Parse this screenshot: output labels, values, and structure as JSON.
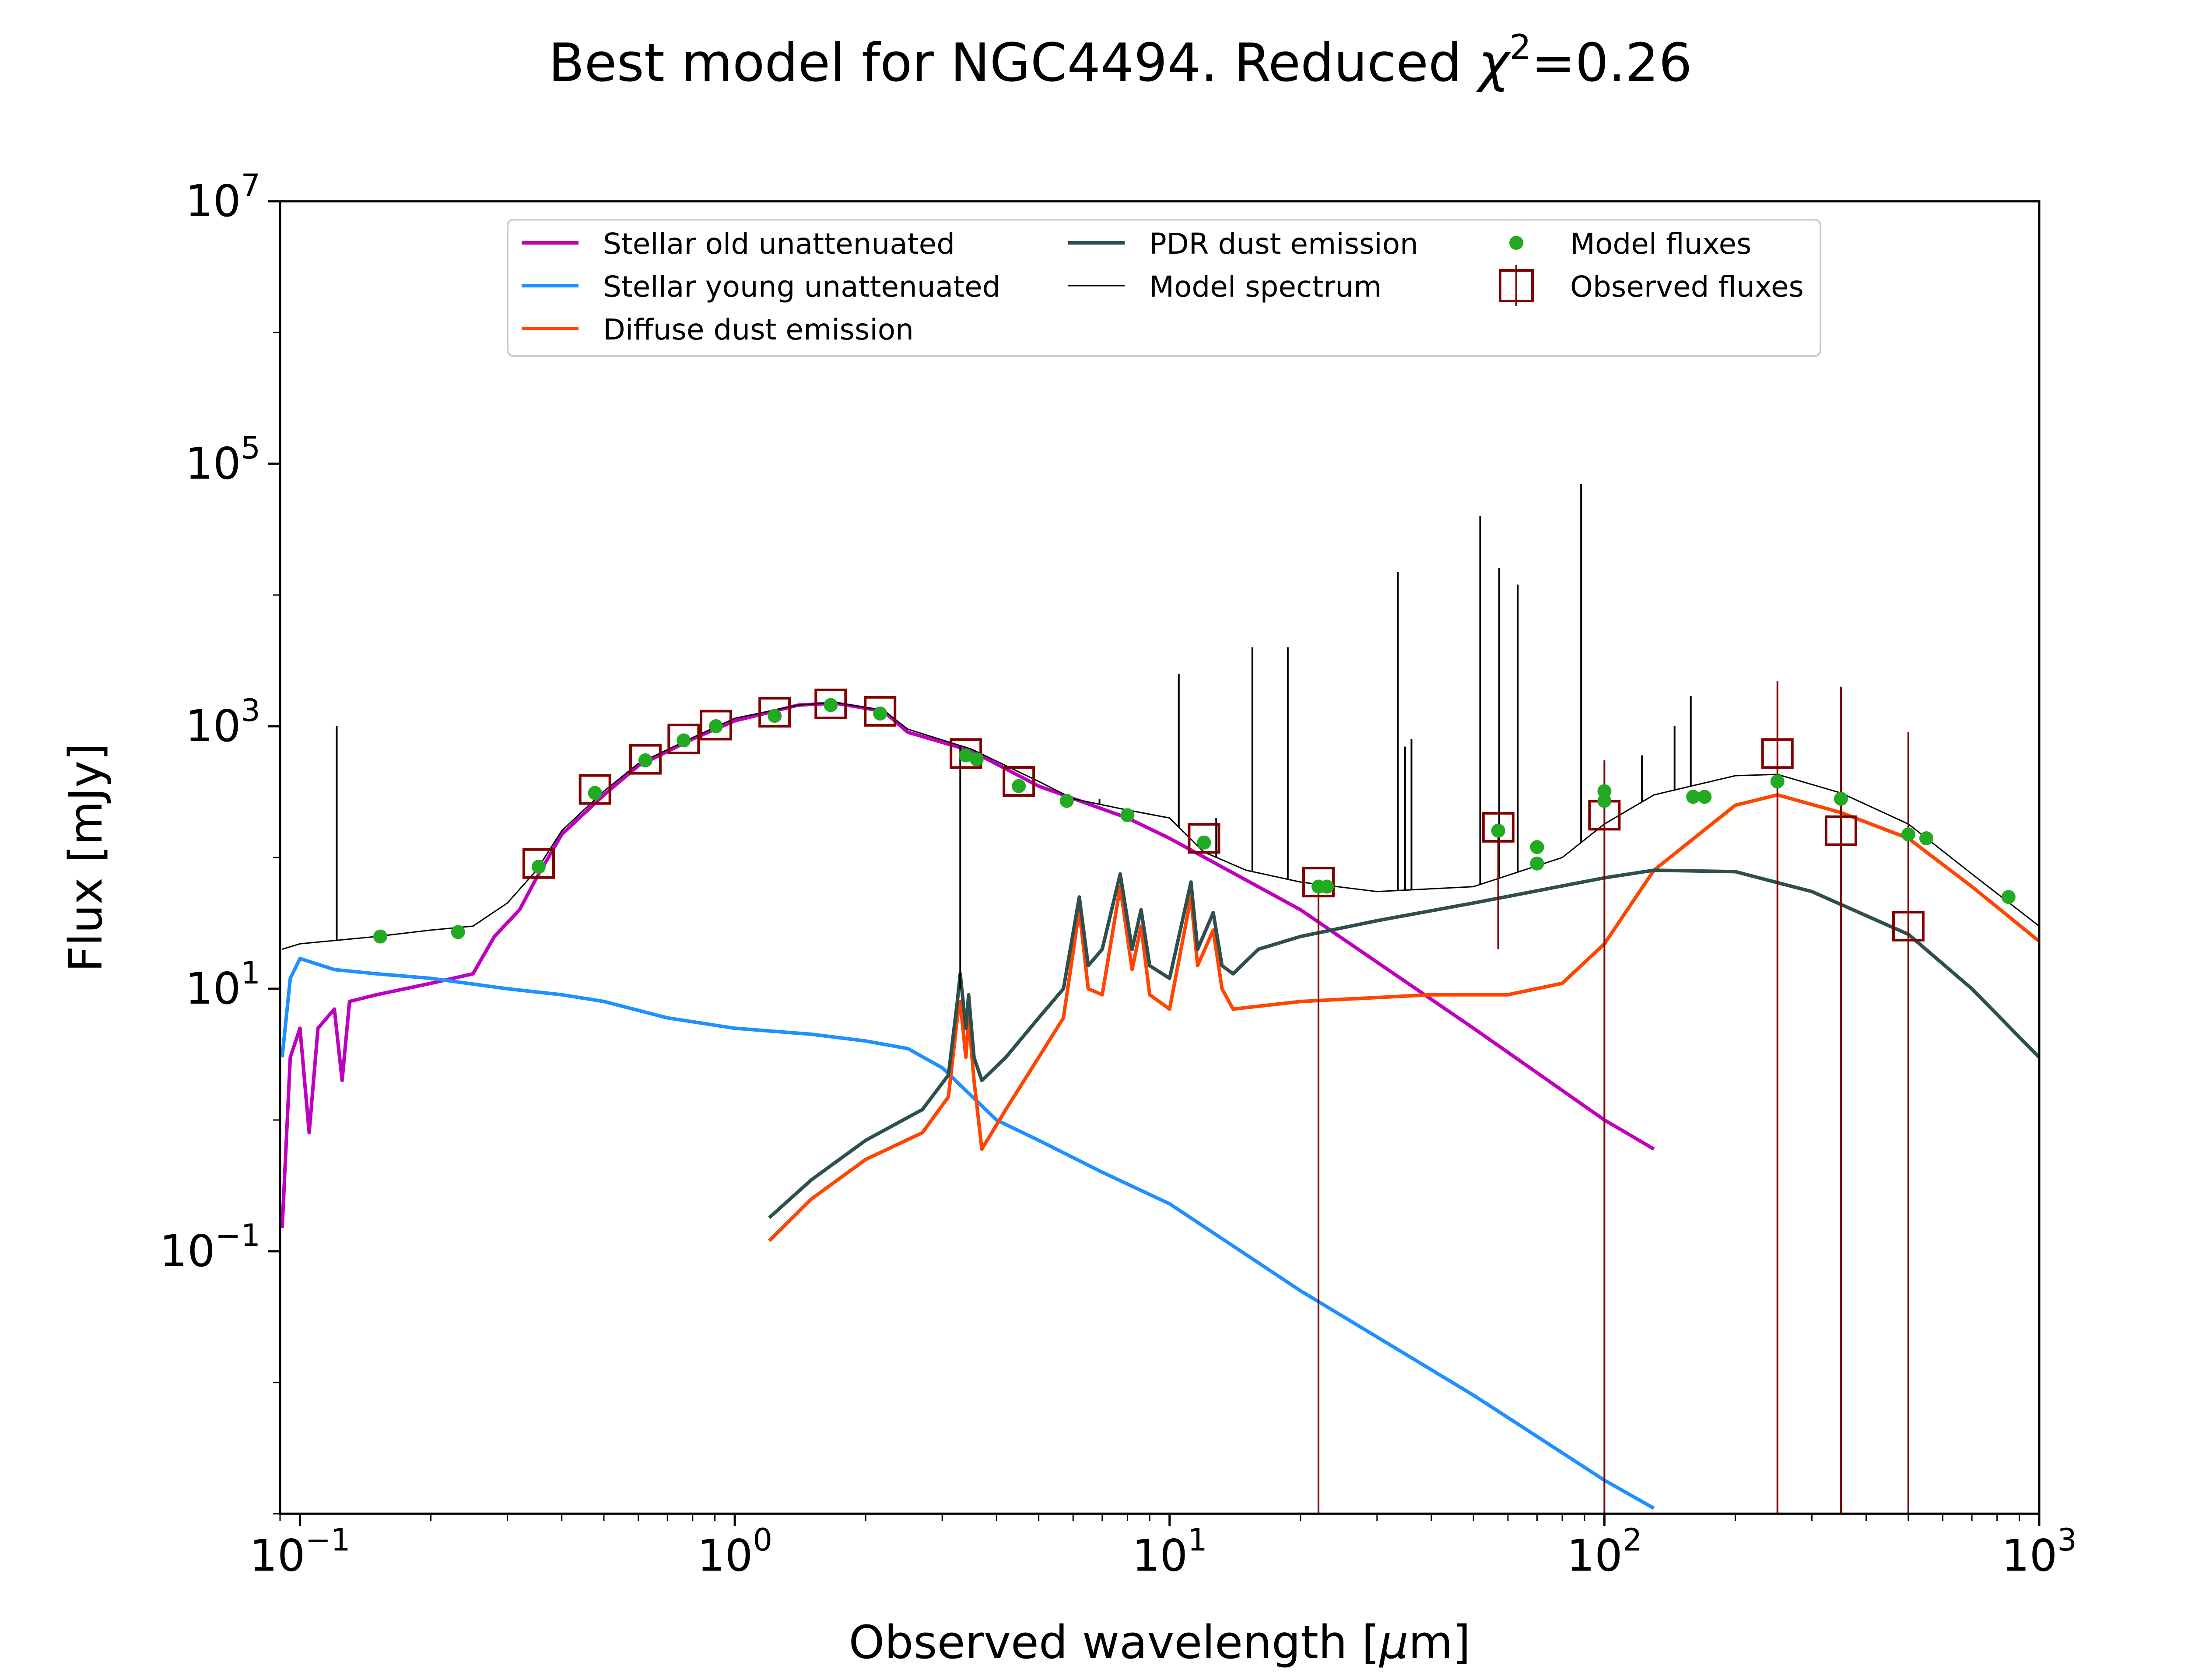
{
  "chart_data": {
    "type": "line",
    "title_prefix": "Best model for NGC4494. Reduced ",
    "title_chi": "χ",
    "title_sup": "2",
    "title_suffix": "=0.26",
    "xlabel_prefix": "Observed wavelength [",
    "xlabel_mu": "μ",
    "xlabel_suffix": "m]",
    "ylabel": "Flux [mJy]",
    "xscale": "log",
    "yscale": "log",
    "xlim": [
      0.09,
      1000
    ],
    "ylim": [
      0.001,
      10000000
    ],
    "xticks": [
      {
        "base": "10",
        "exp": "−1",
        "value": 0.1
      },
      {
        "base": "10",
        "exp": "0",
        "value": 1
      },
      {
        "base": "10",
        "exp": "1",
        "value": 10
      },
      {
        "base": "10",
        "exp": "2",
        "value": 100
      },
      {
        "base": "10",
        "exp": "3",
        "value": 1000
      }
    ],
    "yticks": [
      {
        "base": "10",
        "exp": "−1",
        "value": 0.1
      },
      {
        "base": "10",
        "exp": "1",
        "value": 10
      },
      {
        "base": "10",
        "exp": "3",
        "value": 1000
      },
      {
        "base": "10",
        "exp": "5",
        "value": 100000
      },
      {
        "base": "10",
        "exp": "7",
        "value": 10000000
      }
    ],
    "grid": false,
    "legend_position": "top-center",
    "legend": [
      {
        "label": "Stellar old unattenuated",
        "kind": "line",
        "color": "#bf00bf",
        "width": 8
      },
      {
        "label": "Stellar young unattenuated",
        "kind": "line",
        "color": "#1e90ff",
        "width": 8
      },
      {
        "label": "Diffuse dust emission",
        "kind": "line",
        "color": "#ff4500",
        "width": 8
      },
      {
        "label": "PDR dust emission",
        "kind": "line",
        "color": "#2f4f4f",
        "width": 8
      },
      {
        "label": "Model spectrum",
        "kind": "line",
        "color": "#000000",
        "width": 3
      },
      {
        "label": "Model fluxes",
        "kind": "point",
        "color": "#22aa22"
      },
      {
        "label": "Observed fluxes",
        "kind": "square",
        "color": "#800000"
      }
    ],
    "series": [
      {
        "name": "Stellar old unattenuated",
        "color": "#bf00bf",
        "width": 8,
        "points": [
          [
            0.091,
            0.15
          ],
          [
            0.095,
            3
          ],
          [
            0.1,
            5
          ],
          [
            0.105,
            0.8
          ],
          [
            0.11,
            5
          ],
          [
            0.12,
            7
          ],
          [
            0.125,
            2
          ],
          [
            0.13,
            8
          ],
          [
            0.15,
            9
          ],
          [
            0.2,
            11
          ],
          [
            0.25,
            13
          ],
          [
            0.28,
            25
          ],
          [
            0.32,
            40
          ],
          [
            0.35,
            70
          ],
          [
            0.4,
            150
          ],
          [
            0.5,
            300
          ],
          [
            0.6,
            500
          ],
          [
            0.8,
            800
          ],
          [
            1.0,
            1100
          ],
          [
            1.4,
            1450
          ],
          [
            1.7,
            1500
          ],
          [
            2.2,
            1300
          ],
          [
            2.5,
            900
          ],
          [
            3.5,
            650
          ],
          [
            5,
            350
          ],
          [
            8,
            200
          ],
          [
            10,
            140
          ],
          [
            20,
            40
          ],
          [
            50,
            5
          ],
          [
            100,
            1
          ],
          [
            130,
            0.6
          ]
        ]
      },
      {
        "name": "Stellar young unattenuated",
        "color": "#1e90ff",
        "width": 8,
        "points": [
          [
            0.091,
            3
          ],
          [
            0.095,
            12
          ],
          [
            0.1,
            17
          ],
          [
            0.12,
            14
          ],
          [
            0.15,
            13
          ],
          [
            0.2,
            12
          ],
          [
            0.3,
            10
          ],
          [
            0.4,
            9
          ],
          [
            0.5,
            8
          ],
          [
            0.7,
            6
          ],
          [
            1.0,
            5
          ],
          [
            1.5,
            4.5
          ],
          [
            2.0,
            4
          ],
          [
            2.5,
            3.5
          ],
          [
            3.0,
            2.5
          ],
          [
            4.0,
            1.0
          ],
          [
            5.0,
            0.7
          ],
          [
            7.0,
            0.4
          ],
          [
            10,
            0.23
          ],
          [
            20,
            0.05
          ],
          [
            50,
            0.008
          ],
          [
            100,
            0.0018
          ],
          [
            130,
            0.0011
          ]
        ]
      },
      {
        "name": "Diffuse dust emission",
        "color": "#ff4500",
        "width": 8,
        "points": [
          [
            1.2,
            0.12
          ],
          [
            1.5,
            0.25
          ],
          [
            2.0,
            0.5
          ],
          [
            2.7,
            0.8
          ],
          [
            3.1,
            1.5
          ],
          [
            3.25,
            6
          ],
          [
            3.3,
            8
          ],
          [
            3.4,
            3
          ],
          [
            3.45,
            6
          ],
          [
            3.55,
            2
          ],
          [
            3.7,
            0.6
          ],
          [
            4.2,
            1.2
          ],
          [
            5.0,
            3
          ],
          [
            5.7,
            6
          ],
          [
            6.2,
            40
          ],
          [
            6.5,
            10
          ],
          [
            7.0,
            9
          ],
          [
            7.7,
            60
          ],
          [
            8.2,
            14
          ],
          [
            8.6,
            30
          ],
          [
            9.0,
            9
          ],
          [
            10,
            7
          ],
          [
            11.2,
            50
          ],
          [
            11.6,
            15
          ],
          [
            12.6,
            28
          ],
          [
            13.2,
            10
          ],
          [
            14.0,
            7
          ],
          [
            20,
            8
          ],
          [
            40,
            9
          ],
          [
            60,
            9
          ],
          [
            80,
            11
          ],
          [
            100,
            22
          ],
          [
            130,
            80
          ],
          [
            200,
            250
          ],
          [
            250,
            300
          ],
          [
            350,
            220
          ],
          [
            500,
            140
          ],
          [
            700,
            60
          ],
          [
            1000,
            23
          ]
        ]
      },
      {
        "name": "PDR dust emission",
        "color": "#2f4f4f",
        "width": 8,
        "points": [
          [
            1.2,
            0.18
          ],
          [
            1.5,
            0.35
          ],
          [
            2.0,
            0.7
          ],
          [
            2.7,
            1.2
          ],
          [
            3.1,
            2.2
          ],
          [
            3.25,
            8
          ],
          [
            3.3,
            13
          ],
          [
            3.4,
            5
          ],
          [
            3.45,
            9
          ],
          [
            3.55,
            3
          ],
          [
            3.7,
            2
          ],
          [
            4.2,
            3
          ],
          [
            5.0,
            6
          ],
          [
            5.7,
            10
          ],
          [
            6.2,
            50
          ],
          [
            6.5,
            15
          ],
          [
            7.0,
            20
          ],
          [
            7.7,
            75
          ],
          [
            8.2,
            20
          ],
          [
            8.6,
            40
          ],
          [
            9.0,
            15
          ],
          [
            10,
            12
          ],
          [
            11.2,
            65
          ],
          [
            11.6,
            20
          ],
          [
            12.6,
            38
          ],
          [
            13.2,
            15
          ],
          [
            14.0,
            13
          ],
          [
            16,
            20
          ],
          [
            20,
            25
          ],
          [
            30,
            33
          ],
          [
            50,
            45
          ],
          [
            100,
            70
          ],
          [
            130,
            80
          ],
          [
            200,
            78
          ],
          [
            300,
            55
          ],
          [
            500,
            26
          ],
          [
            700,
            10
          ],
          [
            1000,
            3
          ]
        ]
      },
      {
        "name": "Model spectrum",
        "color": "#000000",
        "width": 3,
        "points": [
          [
            0.091,
            20
          ],
          [
            0.1,
            22
          ],
          [
            0.15,
            25
          ],
          [
            0.2,
            28
          ],
          [
            0.25,
            30
          ],
          [
            0.3,
            45
          ],
          [
            0.35,
            80
          ],
          [
            0.4,
            160
          ],
          [
            0.5,
            320
          ],
          [
            0.6,
            520
          ],
          [
            0.8,
            820
          ],
          [
            1.0,
            1150
          ],
          [
            1.4,
            1450
          ],
          [
            1.7,
            1520
          ],
          [
            2.2,
            1320
          ],
          [
            2.5,
            950
          ],
          [
            3.5,
            670
          ],
          [
            5,
            380
          ],
          [
            6,
            280
          ],
          [
            8,
            230
          ],
          [
            10,
            200
          ],
          [
            12,
            110
          ],
          [
            15,
            80
          ],
          [
            20,
            65
          ],
          [
            30,
            55
          ],
          [
            50,
            60
          ],
          [
            80,
            100
          ],
          [
            100,
            180
          ],
          [
            130,
            300
          ],
          [
            200,
            420
          ],
          [
            250,
            430
          ],
          [
            350,
            310
          ],
          [
            500,
            180
          ],
          [
            700,
            75
          ],
          [
            1000,
            30
          ]
        ]
      }
    ],
    "emission_lines": [
      [
        0.1215,
        1000
      ],
      [
        3.3,
        10
      ],
      [
        6.9,
        280
      ],
      [
        10.5,
        2500
      ],
      [
        12.8,
        200
      ],
      [
        15.5,
        4000
      ],
      [
        18.7,
        4000
      ],
      [
        33.5,
        15000
      ],
      [
        34.8,
        700
      ],
      [
        36,
        800
      ],
      [
        51.8,
        40000
      ],
      [
        57.3,
        16000
      ],
      [
        63.2,
        12000
      ],
      [
        88.4,
        70000
      ],
      [
        122,
        600
      ],
      [
        145,
        1000
      ],
      [
        158,
        1700
      ]
    ],
    "model_fluxes": [
      [
        0.153,
        25
      ],
      [
        0.231,
        27
      ],
      [
        0.354,
        85
      ],
      [
        0.477,
        310
      ],
      [
        0.623,
        550
      ],
      [
        0.763,
        780
      ],
      [
        0.905,
        1000
      ],
      [
        1.235,
        1200
      ],
      [
        1.662,
        1450
      ],
      [
        2.159,
        1250
      ],
      [
        3.4,
        600
      ],
      [
        3.6,
        560
      ],
      [
        4.5,
        350
      ],
      [
        5.8,
        270
      ],
      [
        8.0,
        210
      ],
      [
        12,
        130
      ],
      [
        22,
        60
      ],
      [
        23,
        60
      ],
      [
        57,
        160
      ],
      [
        70,
        120
      ],
      [
        70,
        90
      ],
      [
        100,
        270
      ],
      [
        100,
        320
      ],
      [
        160,
        290
      ],
      [
        170,
        290
      ],
      [
        250,
        380
      ],
      [
        350,
        280
      ],
      [
        500,
        150
      ],
      [
        550,
        140
      ],
      [
        850,
        50
      ]
    ],
    "observed_fluxes": [
      [
        0.354,
        90
      ],
      [
        0.477,
        330
      ],
      [
        0.623,
        560
      ],
      [
        0.763,
        800
      ],
      [
        0.905,
        1020
      ],
      [
        1.235,
        1280
      ],
      [
        1.662,
        1480
      ],
      [
        2.159,
        1300
      ],
      [
        3.4,
        620
      ],
      [
        4.5,
        380
      ],
      [
        12,
        140
      ],
      [
        22,
        65
      ],
      [
        57,
        170
      ],
      [
        100,
        210
      ],
      [
        250,
        620
      ],
      [
        350,
        160
      ],
      [
        500,
        30
      ]
    ],
    "error_bars": [
      [
        22,
        0.001,
        65
      ],
      [
        57,
        20,
        170
      ],
      [
        100,
        0.001,
        550
      ],
      [
        250,
        0.001,
        2200
      ],
      [
        350,
        0.001,
        2000
      ],
      [
        500,
        0.001,
        900
      ]
    ]
  }
}
